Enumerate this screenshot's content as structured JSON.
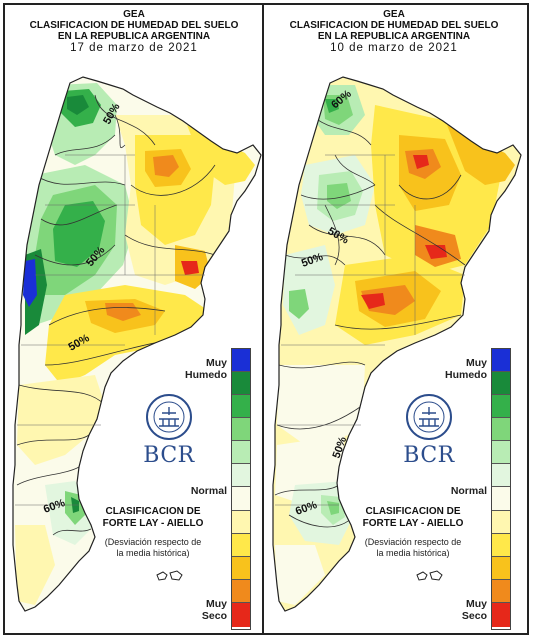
{
  "colors": {
    "muy_humedo_1": "#1a2fd6",
    "muy_humedo_2": "#198a3a",
    "humedo_3": "#34b04a",
    "humedo_4": "#7fd67a",
    "humedo_5": "#b8ecb4",
    "normal_light": "#e2f6df",
    "normal": "#fbfbea",
    "seco_1": "#fff7b0",
    "seco_2": "#ffe84a",
    "seco_3": "#f8c21c",
    "seco_4": "#f08a1c",
    "muy_seco": "#e6281a"
  },
  "panels": [
    {
      "title_line1": "GEA",
      "title_line2": "CLASIFICACION DE HUMEDAD DEL SUELO",
      "title_line3": "EN LA REPUBLICA ARGENTINA",
      "date": "17 de marzo de 2021",
      "contour_labels": [
        "50%",
        "50%",
        "50%",
        "60%"
      ],
      "legend_top": "Muy",
      "legend_top2": "Humedo",
      "legend_mid": "Normal",
      "legend_bottom": "Muy",
      "legend_bottom2": "Seco",
      "classification_1": "CLASIFICACION DE",
      "classification_2": "FORTE LAY - AIELLO",
      "note_1": "(Desviación respecto de",
      "note_2": "la media histórica)",
      "logo_text": "BCR"
    },
    {
      "title_line1": "GEA",
      "title_line2": "CLASIFICACION DE HUMEDAD DEL SUELO",
      "title_line3": "EN LA REPUBLICA ARGENTINA",
      "date": "10 de marzo de 2021",
      "contour_labels": [
        "60%",
        "50%",
        "50%",
        "50%",
        "60%"
      ],
      "legend_top": "Muy",
      "legend_top2": "Humedo",
      "legend_mid": "Normal",
      "legend_bottom": "Muy",
      "legend_bottom2": "Seco",
      "classification_1": "CLASIFICACION DE",
      "classification_2": "FORTE LAY - AIELLO",
      "note_1": "(Desviación respecto de",
      "note_2": "la media histórica)",
      "logo_text": "BCR"
    }
  ]
}
